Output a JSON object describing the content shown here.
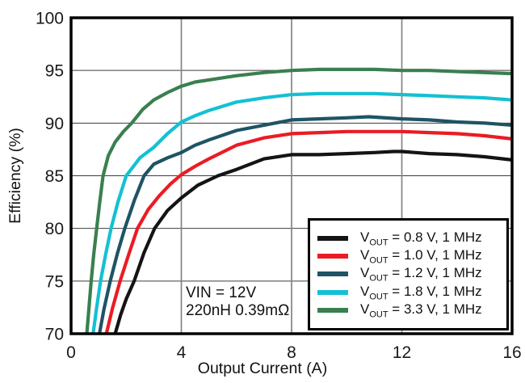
{
  "figure": {
    "background": "#ffffff"
  },
  "chart_data": {
    "type": "line",
    "title": "",
    "xlabel": "Output Current (A)",
    "ylabel": "Efficiency (%)",
    "xlim": [
      0,
      16
    ],
    "ylim": [
      70,
      100
    ],
    "x_ticks": [
      0,
      4,
      8,
      12,
      16
    ],
    "y_ticks": [
      70,
      75,
      80,
      85,
      90,
      95,
      100
    ],
    "grid": true,
    "legend_position": "lower-right",
    "annotation": {
      "line1": "VIN = 12V",
      "line2": "220nH 0.39mΩ"
    },
    "style": {
      "axis_color": "#000000",
      "tick_label_color": "#1a1a1a",
      "gridline_color_h": "#3c3c3c",
      "gridline_color_v": "#848484"
    },
    "series": [
      {
        "name": "VOUT = 0.8 V, 1 MHz",
        "slug": "vout-0p8v",
        "label": {
          "base": "V",
          "sub": "OUT",
          "rest": " = 0.8 V, 1 MHz"
        },
        "color": "#141414",
        "x": [
          1.6,
          1.8,
          2.0,
          2.29,
          2.65,
          3.03,
          3.5,
          4.0,
          4.6,
          5.33,
          6.0,
          7.0,
          8.0,
          9.0,
          10.0,
          11.0,
          11.7,
          12.0,
          13.0,
          14.0,
          15.0,
          16.0
        ],
        "y": [
          70,
          71.8,
          73.3,
          75,
          77.7,
          80,
          81.7,
          82.9,
          84.1,
          85,
          85.6,
          86.6,
          87,
          87,
          87.1,
          87.2,
          87.3,
          87.3,
          87.1,
          87,
          86.8,
          86.5
        ]
      },
      {
        "name": "VOUT = 1.0 V, 1 MHz",
        "slug": "vout-1p0v",
        "label": {
          "base": "V",
          "sub": "OUT",
          "rest": " = 1.0 V, 1 MHz"
        },
        "color": "#ea1c24",
        "x": [
          1.28,
          1.5,
          1.78,
          2.1,
          2.41,
          2.8,
          3.2,
          3.6,
          4.0,
          4.5,
          5.0,
          6.0,
          7.0,
          8.0,
          9.0,
          10.0,
          11.0,
          12.0,
          13.0,
          14.0,
          15.0,
          16.0
        ],
        "y": [
          70,
          72.4,
          75,
          77.6,
          80,
          81.8,
          83.1,
          84.2,
          85.1,
          85.9,
          86.6,
          87.9,
          88.6,
          89,
          89.1,
          89.2,
          89.2,
          89.2,
          89.1,
          89,
          88.8,
          88.5
        ]
      },
      {
        "name": "VOUT = 1.2 V, 1 MHz",
        "slug": "vout-1p2v",
        "label": {
          "base": "V",
          "sub": "OUT",
          "rest": " = 1.2 V, 1 MHz"
        },
        "color": "#1e5465",
        "x": [
          1.03,
          1.2,
          1.42,
          1.68,
          1.95,
          2.3,
          2.65,
          3.0,
          3.5,
          4.0,
          4.5,
          5.0,
          6.0,
          7.0,
          8.0,
          9.0,
          10.0,
          10.8,
          12.0,
          13.0,
          14.0,
          15.0,
          16.0
        ],
        "y": [
          70,
          72.4,
          75,
          77.6,
          80,
          82.7,
          85,
          86.1,
          86.7,
          87.2,
          87.9,
          88.4,
          89.3,
          89.8,
          90.3,
          90.4,
          90.5,
          90.6,
          90.4,
          90.3,
          90.1,
          90,
          89.8
        ]
      },
      {
        "name": "VOUT = 1.8 V, 1 MHz",
        "slug": "vout-1p8v",
        "label": {
          "base": "V",
          "sub": "OUT",
          "rest": " = 1.8 V, 1 MHz"
        },
        "color": "#14c0d4",
        "x": [
          0.8,
          0.93,
          1.07,
          1.25,
          1.45,
          1.7,
          2.0,
          2.5,
          3.0,
          3.5,
          4.0,
          4.5,
          5.0,
          6.0,
          7.0,
          8.0,
          9.0,
          10.0,
          11.0,
          12.0,
          13.0,
          14.0,
          15.0,
          16.0
        ],
        "y": [
          70,
          72.5,
          75,
          77.5,
          80,
          82.5,
          85,
          86.7,
          87.7,
          89,
          90.1,
          90.7,
          91.2,
          92,
          92.4,
          92.7,
          92.8,
          92.8,
          92.8,
          92.7,
          92.6,
          92.5,
          92.4,
          92.2
        ]
      },
      {
        "name": "VOUT = 3.3 V, 1 MHz",
        "slug": "vout-3p3v",
        "label": {
          "base": "V",
          "sub": "OUT",
          "rest": " = 3.3 V, 1 MHz"
        },
        "color": "#3a7f50",
        "x": [
          0.57,
          0.65,
          0.73,
          0.82,
          0.93,
          1.04,
          1.16,
          1.35,
          1.6,
          1.9,
          2.2,
          2.6,
          3.0,
          3.5,
          4.0,
          4.5,
          5.0,
          6.0,
          7.0,
          8.0,
          9.0,
          10.0,
          11.0,
          12.0,
          13.0,
          14.0,
          15.0,
          16.0
        ],
        "y": [
          70,
          72.5,
          75,
          77.5,
          80,
          82.5,
          85,
          86.9,
          88.2,
          89.2,
          90,
          91.3,
          92.2,
          92.9,
          93.5,
          93.9,
          94.1,
          94.5,
          94.8,
          95,
          95.1,
          95.1,
          95.1,
          95,
          95,
          94.9,
          94.8,
          94.7
        ]
      }
    ]
  }
}
